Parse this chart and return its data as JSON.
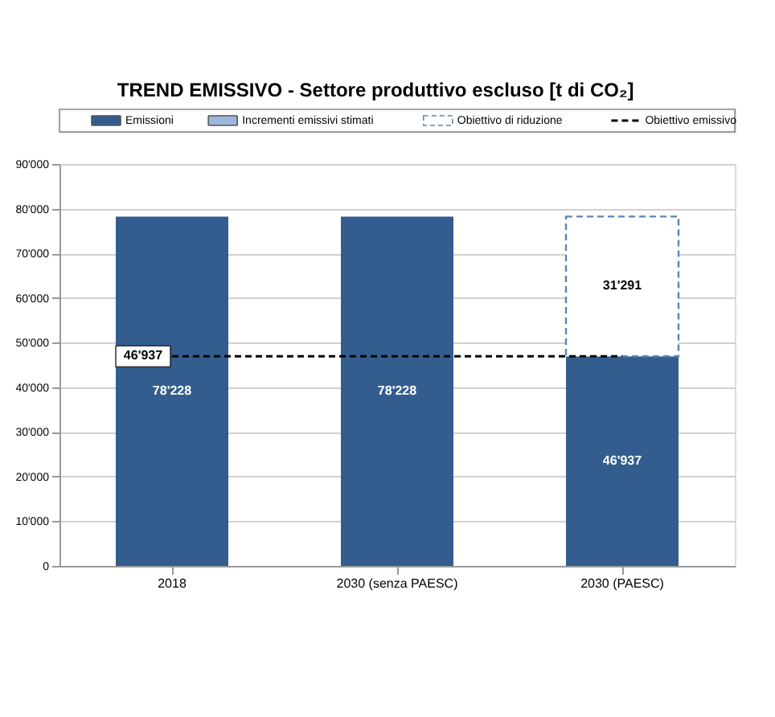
{
  "chart_data": {
    "type": "bar",
    "title": "TREND EMISSIVO - Settore produttivo escluso [t di CO₂]",
    "categories": [
      "2018",
      "2030 (senza PAESC)",
      "2030 (PAESC)"
    ],
    "stacked": true,
    "series": [
      {
        "name": "Emissioni",
        "color": "#335d8e",
        "values": [
          78228,
          78228,
          46937
        ],
        "value_labels": [
          "78'228",
          "78'228",
          "46'937"
        ]
      },
      {
        "name": "Incrementi emissivi stimati",
        "color": "#9bb7d9",
        "values": [
          null,
          null,
          null
        ]
      },
      {
        "name": "Obiettivo di riduzione",
        "color": "#5b84b8",
        "line_style": "dashed",
        "values": [
          null,
          null,
          31291
        ],
        "value_labels": [
          null,
          null,
          "31'291"
        ]
      },
      {
        "name": "Obiettivo emissivo",
        "type": "line",
        "color": "#000000",
        "line_style": "dashed",
        "marker": "none",
        "values": [
          46937,
          46937,
          46937
        ]
      }
    ],
    "annotations": [
      {
        "text": "46'937",
        "x": "2018",
        "y": 46937
      }
    ],
    "ylim": [
      0,
      90000
    ],
    "yticks": [
      0,
      {
        "value": 10000,
        "label": "10'000"
      },
      {
        "value": 20000,
        "label": "20'000"
      },
      {
        "value": 30000,
        "label": "30'000"
      },
      {
        "value": 40000,
        "label": "40'000"
      },
      {
        "value": 50000,
        "label": "50'000"
      },
      {
        "value": 60000,
        "label": "60'000"
      },
      {
        "value": 70000,
        "label": "70'000"
      },
      {
        "value": 80000,
        "label": "80'000"
      },
      {
        "value": 90000,
        "label": "90'000"
      }
    ],
    "grid": "y",
    "legend": "top"
  }
}
